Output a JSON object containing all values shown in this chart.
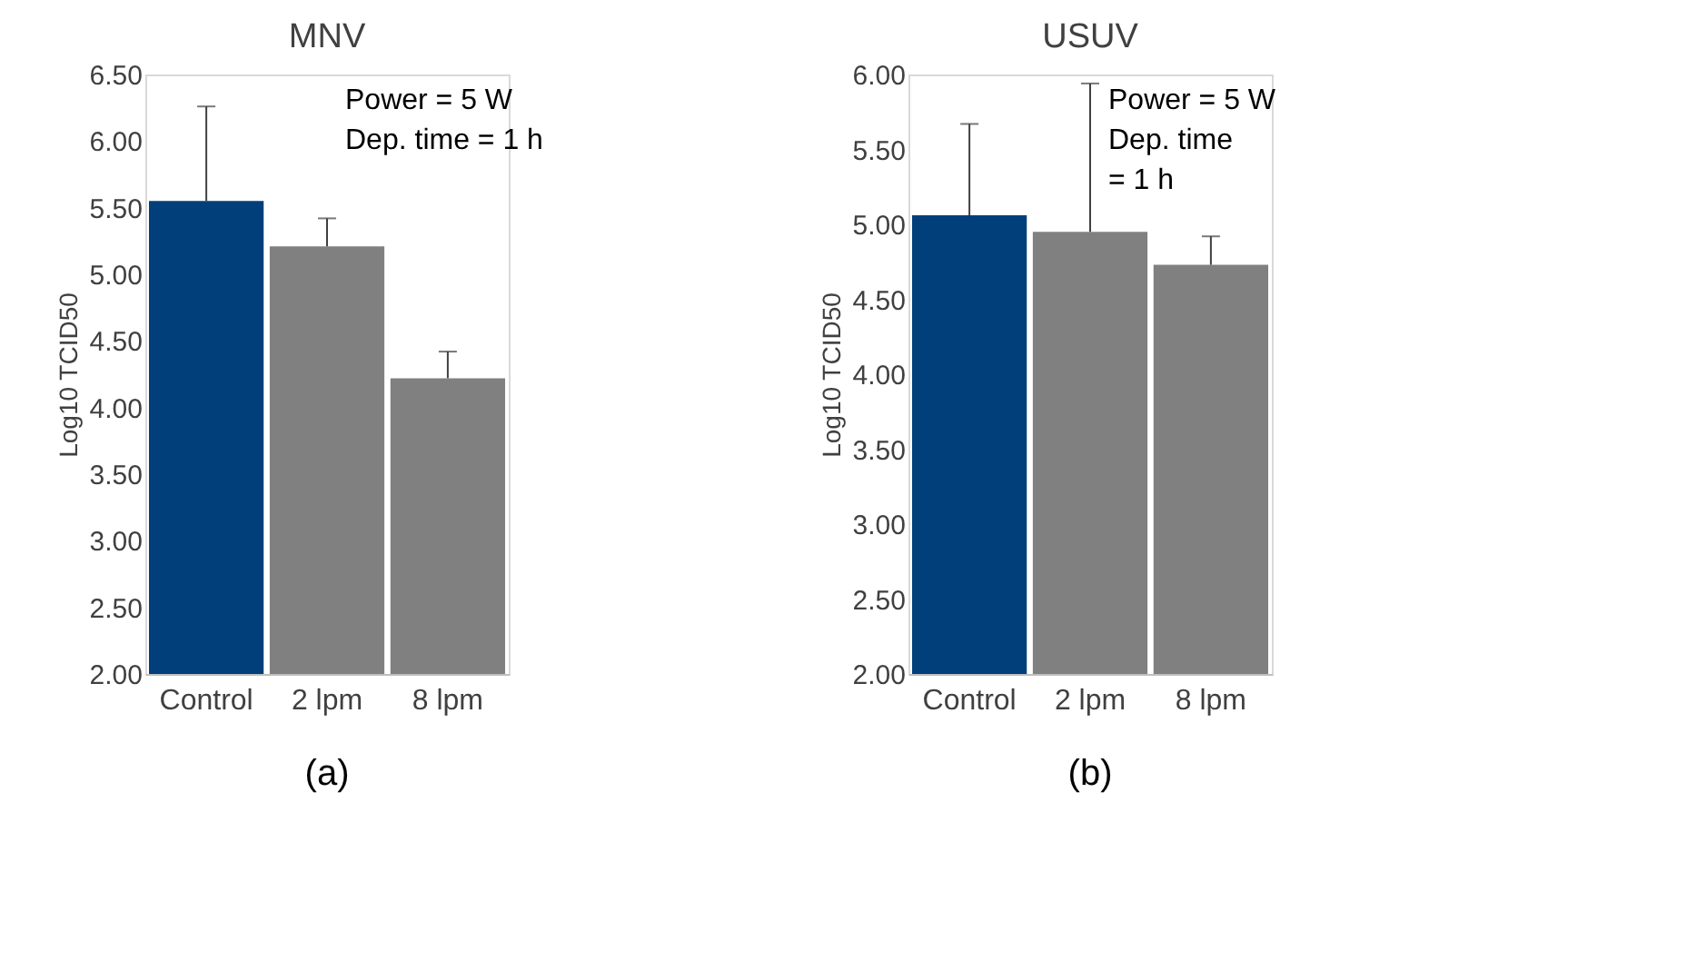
{
  "chart_data": [
    {
      "type": "bar",
      "title": "MNV",
      "ylabel": "Log10 TCID50",
      "categories": [
        "Control",
        "2 lpm",
        "8 lpm"
      ],
      "values": [
        5.55,
        5.21,
        4.22
      ],
      "colors": [
        "#003f7a",
        "#808080",
        "#808080"
      ],
      "errors": [
        [
          5.55,
          6.26
        ],
        [
          5.21,
          5.42
        ],
        [
          4.22,
          4.42
        ]
      ],
      "ylim": [
        2,
        6.5
      ],
      "yticks": [
        {
          "value": 2,
          "label": "2.00"
        },
        {
          "value": 2.5,
          "label": "2.50"
        },
        {
          "value": 3,
          "label": "3.00"
        },
        {
          "value": 3.5,
          "label": "3.50"
        },
        {
          "value": 4,
          "label": "4.00"
        },
        {
          "value": 4.5,
          "label": "4.50"
        },
        {
          "value": 5,
          "label": "5.00"
        },
        {
          "value": 5.5,
          "label": "5.50"
        },
        {
          "value": 6,
          "label": "6.00"
        },
        {
          "value": 6.5,
          "label": "6.50"
        }
      ],
      "annotations": [
        "Power = 5 W",
        "Dep. time = 1 h",
        "(a)"
      ]
    },
    {
      "type": "bar",
      "title": "USUV",
      "ylabel": "Log10 TCID50",
      "categories": [
        "Control",
        "2 lpm",
        "8 lpm"
      ],
      "values": [
        5.06,
        4.95,
        4.73
      ],
      "colors": [
        "#003f7a",
        "#808080",
        "#808080"
      ],
      "errors": [
        [
          5.06,
          5.67
        ],
        [
          4.95,
          5.94
        ],
        [
          4.73,
          4.92
        ]
      ],
      "ylim": [
        2,
        6
      ],
      "yticks": [
        {
          "value": 2,
          "label": "2.00"
        },
        {
          "value": 2.5,
          "label": "2.50"
        },
        {
          "value": 3,
          "label": "3.00"
        },
        {
          "value": 3.5,
          "label": "3.50"
        },
        {
          "value": 4,
          "label": "4.00"
        },
        {
          "value": 4.5,
          "label": "4.50"
        },
        {
          "value": 5,
          "label": "5.00"
        },
        {
          "value": 5.5,
          "label": "5.50"
        },
        {
          "value": 6,
          "label": "6.00"
        }
      ],
      "annotations": [
        "Power = 5 W",
        "Dep. time",
        "= 1 h",
        "(b)"
      ]
    }
  ]
}
